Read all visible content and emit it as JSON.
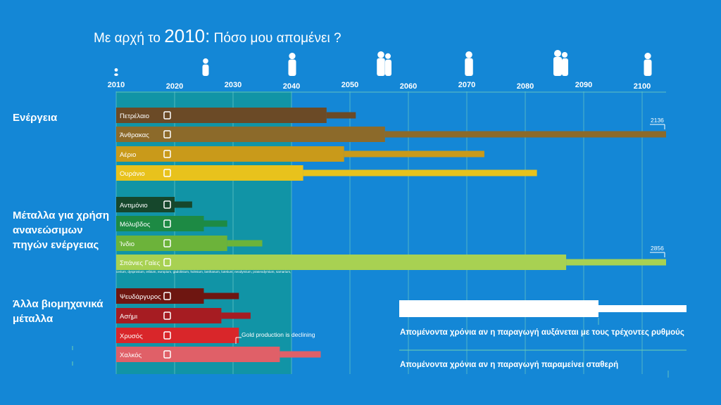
{
  "title": {
    "prefix": "Με αρχή το",
    "year": "2010:",
    "question": "Πόσο μου απομένει ?"
  },
  "categories": {
    "energy": "Ενέργεια",
    "metals_renewables": "Μέταλλα για χρήση ανανεώσιμων πηγών ενέργειας",
    "industrial_metals": "Άλλα βιομηχανικά μέταλλα"
  },
  "legend": {
    "growing": "Απομένοντα χρόνια αν η παραγωγή αυξάνεται με τους τρέχοντες ρυθμούς",
    "constant": "Απομένοντα χρόνια αν η παραγωγή παραμείνει σταθερή"
  },
  "note": "Gold production is declining",
  "rare_earths_elements": "cerium, dysprosium, erbium, europium, gadolinium, holmium, lanthanum, lutetium, neodymium, praseodymium, samarium,",
  "colors": {
    "background": "#1487d6",
    "plot_area": "#1194a6",
    "grid": "#5fc2c2"
  },
  "chart_data": {
    "type": "bar",
    "x_axis": {
      "start": 2010,
      "end": 2100,
      "ticks": [
        2010,
        2020,
        2030,
        2040,
        2050,
        2060,
        2070,
        2080,
        2090,
        2100
      ]
    },
    "life_stage_icons": [
      "baby-icon",
      "child-icon",
      "woman-icon",
      "family-icon",
      "elderly-man-icon",
      "elderly-couple-icon",
      "wheelchair-icon"
    ],
    "highlight_until": 2040,
    "series": [
      {
        "name": "Πετρέλαιο",
        "group": "energy",
        "icon": "fuel-pump-icon",
        "color": "#6b4a26",
        "growing_end": 2046,
        "constant_end": 2051
      },
      {
        "name": "Άνθρακας",
        "group": "energy",
        "icon": "lightning-icon",
        "color": "#8c6a2a",
        "growing_end": 2056,
        "constant_end": 2136,
        "constant_label": "2136"
      },
      {
        "name": "Αέριο",
        "group": "energy",
        "icon": "lightning-icon",
        "color": "#c99a1a",
        "growing_end": 2049,
        "constant_end": 2073
      },
      {
        "name": "Ουράνιο",
        "group": "energy",
        "icon": "radiation-icon",
        "color": "#e8c21c",
        "growing_end": 2042,
        "constant_end": 2082
      },
      {
        "name": "Αντιμόνιο",
        "group": "metals_renewables",
        "icon": "battery-icon",
        "color": "#16472c",
        "growing_end": 2020,
        "constant_end": 2023
      },
      {
        "name": "Μόλυβδος",
        "group": "metals_renewables",
        "icon": "car-icon",
        "color": "#1d8a44",
        "growing_end": 2025,
        "constant_end": 2029
      },
      {
        "name": "Ίνδιο",
        "group": "metals_renewables",
        "icon": "solar-panel-icon",
        "color": "#6cb33a",
        "growing_end": 2029,
        "constant_end": 2035
      },
      {
        "name": "Σπάνιες Γαίες",
        "group": "metals_renewables",
        "icon": "wind-turbine-icon",
        "color": "#a8d152",
        "growing_end": 2087,
        "constant_end": 2856,
        "constant_label": "2856"
      },
      {
        "name": "Ψευδάργυρος",
        "group": "industrial_metals",
        "icon": "saxophone-icon",
        "color": "#6e1611",
        "growing_end": 2025,
        "constant_end": 2031
      },
      {
        "name": "Ασήμι",
        "group": "industrial_metals",
        "icon": "ring-icon",
        "color": "#a61c22",
        "growing_end": 2028,
        "constant_end": 2033
      },
      {
        "name": "Χρυσός",
        "group": "industrial_metals",
        "icon": "phone-icon",
        "color": "#d9262a",
        "growing_end": 2031,
        "constant_end": 2031
      },
      {
        "name": "Χαλκός",
        "group": "industrial_metals",
        "icon": "faucet-icon",
        "color": "#e06068",
        "growing_end": 2038,
        "constant_end": 2045
      }
    ]
  }
}
